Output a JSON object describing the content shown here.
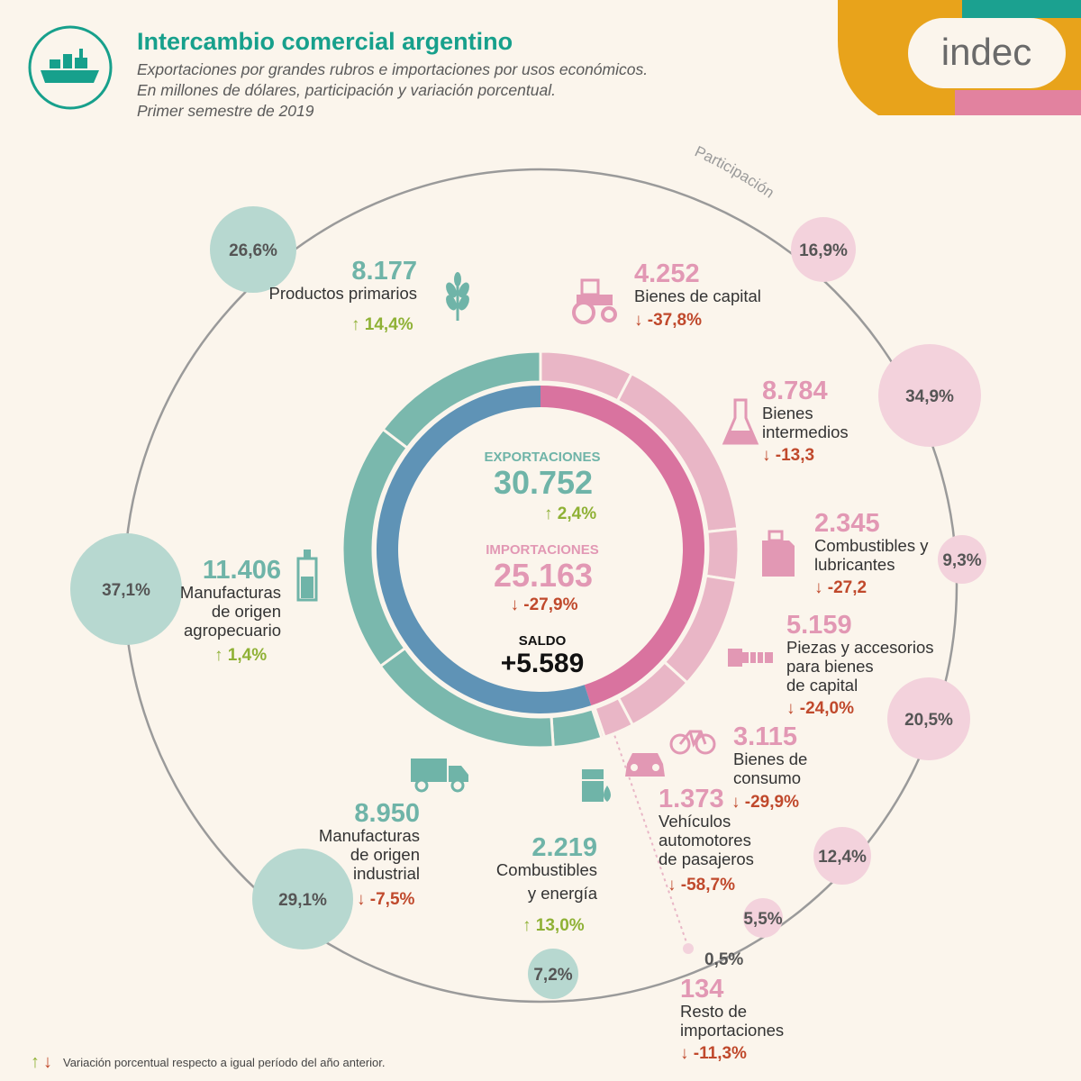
{
  "header": {
    "title": "Intercambio comercial argentino",
    "subtitle_lines": [
      "Exportaciones por grandes rubros e importaciones por usos económicos.",
      "En millones de dólares, participación y variación porcentual.",
      "Primer semestre de 2019"
    ],
    "logo_text": "indec",
    "participacion_label": "Participación"
  },
  "center": {
    "export_label": "EXPORTACIONES",
    "export_value": "30.752",
    "export_change": "2,4%",
    "import_label": "IMPORTACIONES",
    "import_value": "25.163",
    "import_change": "-27,9%",
    "saldo_label": "SALDO",
    "saldo_value": "+5.589"
  },
  "colors": {
    "export": "#7ab8ad",
    "import": "#e9b6c6",
    "export_inner": "#5f93b6",
    "import_inner": "#d9739f",
    "up_arrow": "#8fb135",
    "down_arrow": "#c0492c",
    "background": "#fbf5ec"
  },
  "footnote": "Variación porcentual respecto a igual período del año anterior.",
  "chart_data": {
    "type": "pie",
    "title": "Intercambio comercial argentino",
    "exports": {
      "total": 30752,
      "change_pct": 2.4,
      "items": [
        {
          "name": "Productos primarios",
          "label_lines": [
            "Productos primarios"
          ],
          "value": 8177,
          "value_text": "8.177",
          "share": "26,6%",
          "change": "14,4%",
          "direction": "up",
          "icon": "wheat-icon"
        },
        {
          "name": "Manufacturas de origen agropecuario",
          "label_lines": [
            "Manufacturas",
            "de origen",
            "agropecuario"
          ],
          "value": 11406,
          "value_text": "11.406",
          "share": "37,1%",
          "change": "1,4%",
          "direction": "up",
          "icon": "bottle-icon"
        },
        {
          "name": "Manufacturas de origen industrial",
          "label_lines": [
            "Manufacturas",
            "de origen",
            "industrial"
          ],
          "value": 8950,
          "value_text": "8.950",
          "share": "29,1%",
          "change": "-7,5%",
          "direction": "down",
          "icon": "truck-icon"
        },
        {
          "name": "Combustibles y energía",
          "label_lines": [
            "Combustibles",
            "y energía"
          ],
          "value": 2219,
          "value_text": "2.219",
          "share": "7,2%",
          "change": "13,0%",
          "direction": "up",
          "icon": "fuel-barrel-icon"
        }
      ]
    },
    "imports": {
      "total": 25163,
      "change_pct": -27.9,
      "items": [
        {
          "name": "Bienes de capital",
          "label_lines": [
            "Bienes de capital"
          ],
          "value": 4252,
          "value_text": "4.252",
          "share": "16,9%",
          "change": "-37,8%",
          "direction": "down",
          "icon": "tractor-icon"
        },
        {
          "name": "Bienes intermedios",
          "label_lines": [
            "Bienes",
            "intermedios"
          ],
          "value": 8784,
          "value_text": "8.784",
          "share": "34,9%",
          "change": "-13,3",
          "direction": "down",
          "icon": "flask-icon"
        },
        {
          "name": "Combustibles y lubricantes",
          "label_lines": [
            "Combustibles y",
            "lubricantes"
          ],
          "value": 2345,
          "value_text": "2.345",
          "share": "9,3%",
          "change": "-27,2",
          "direction": "down",
          "icon": "jerrycan-icon"
        },
        {
          "name": "Piezas y accesorios para bienes de capital",
          "label_lines": [
            "Piezas y accesorios",
            "para bienes",
            "de capital"
          ],
          "value": 5159,
          "value_text": "5.159",
          "share": "20,5%",
          "change": "-24,0%",
          "direction": "down",
          "icon": "bolt-icon"
        },
        {
          "name": "Bienes de consumo",
          "label_lines": [
            "Bienes de",
            "consumo"
          ],
          "value": 3115,
          "value_text": "3.115",
          "share": "12,4%",
          "change": "-29,9%",
          "direction": "down",
          "icon": "bicycle-icon"
        },
        {
          "name": "Vehículos automotores de pasajeros",
          "label_lines": [
            "Vehículos",
            "automotores",
            "de pasajeros"
          ],
          "value": 1373,
          "value_text": "1.373",
          "share": "5,5%",
          "change": "-58,7%",
          "direction": "down",
          "icon": "car-icon"
        },
        {
          "name": "Resto de importaciones",
          "label_lines": [
            "Resto de",
            "importaciones"
          ],
          "value": 134,
          "value_text": "134",
          "share": "0,5%",
          "change": "-11,3%",
          "direction": "down",
          "icon": ""
        }
      ]
    }
  }
}
